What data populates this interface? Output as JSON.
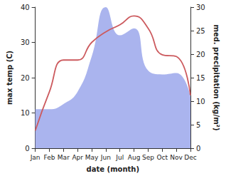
{
  "chart_data": {
    "type": "line",
    "x_label": "date (month)",
    "y_label": "max temp (C)",
    "y2_label": "med. precipitation (kg/m²)",
    "categories": [
      "Jan",
      "Feb",
      "Mar",
      "Apr",
      "May",
      "Jun",
      "Jul",
      "Aug",
      "Sep",
      "Oct",
      "Nov",
      "Dec"
    ],
    "ylim": [
      0,
      40
    ],
    "yticks": [
      0,
      10,
      20,
      30,
      40
    ],
    "y2lim": [
      0,
      30
    ],
    "y2ticks": [
      0,
      5,
      10,
      15,
      20,
      25,
      30
    ],
    "grid": false,
    "series": [
      {
        "name": "max temp",
        "type": "line",
        "color": "#cc5a5e",
        "axis": "y",
        "values": [
          5,
          16,
          25,
          25,
          30,
          33,
          35,
          37.5,
          34,
          26.5,
          26,
          15
        ]
      },
      {
        "name": "med. precipitation",
        "type": "area",
        "color": "#aab4ee",
        "axis": "y2",
        "values": [
          8.3,
          8.3,
          9.4,
          12,
          19.5,
          30,
          24,
          25.5,
          16.5,
          15.7,
          16,
          11
        ]
      }
    ]
  }
}
